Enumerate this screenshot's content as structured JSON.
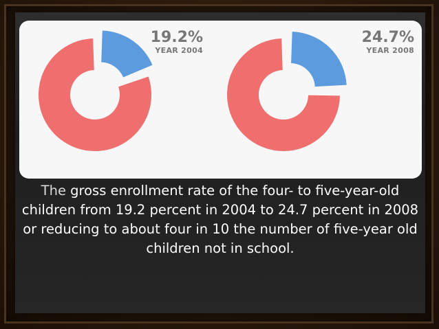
{
  "chart_data": [
    {
      "type": "pie",
      "style": "donut",
      "value_label": "19.2%",
      "year_label": "YEAR 2004",
      "slices": [
        {
          "value": 19.2,
          "color": "#5b9bde"
        },
        {
          "value": 80.8,
          "color": "#ef6e6e"
        }
      ]
    },
    {
      "type": "pie",
      "style": "donut",
      "value_label": "24.7%",
      "year_label": "YEAR 2008",
      "slices": [
        {
          "value": 24.7,
          "color": "#5b9bde"
        },
        {
          "value": 75.3,
          "color": "#ef6e6e"
        }
      ]
    }
  ],
  "caption": {
    "first_word": "The",
    "rest": " gross enrollment rate of the four- to five-year-old children from 19.2 percent in 2004 to 24.7 percent in 2008 or reducing to about four in 10 the number of five-year old children not in school."
  }
}
